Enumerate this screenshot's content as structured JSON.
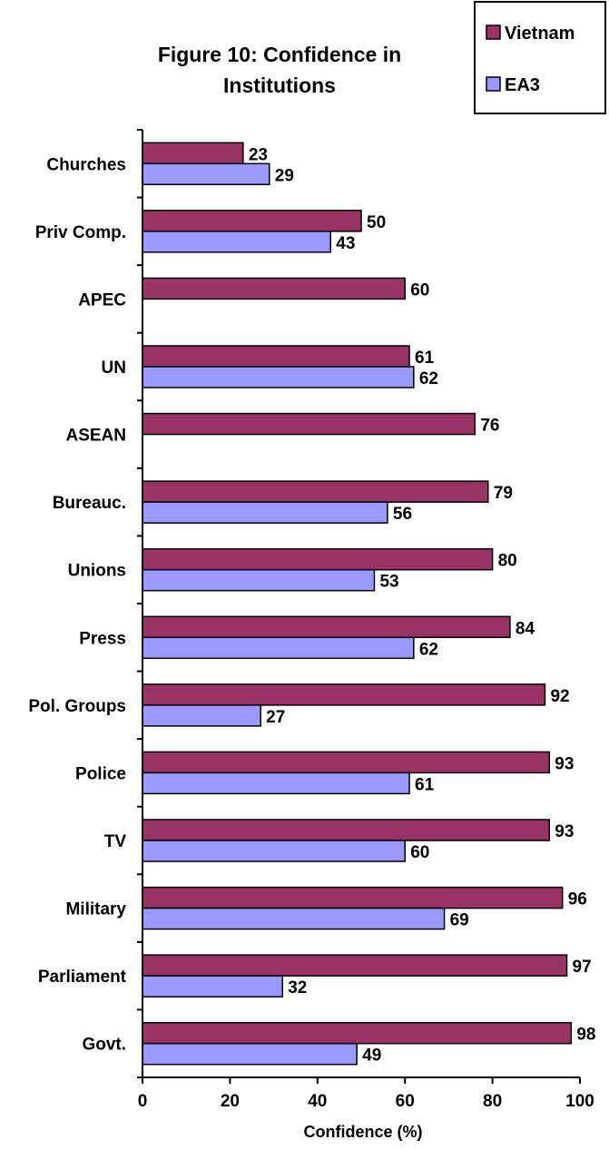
{
  "chart_data": {
    "type": "bar",
    "orientation": "horizontal",
    "title": "Figure 10:  Confidence in Institutions",
    "title_lines": [
      "Figure 10:  Confidence in",
      "Institutions"
    ],
    "xlabel": "Confidence (%)",
    "ylabel": "",
    "xlim": [
      0,
      100
    ],
    "xticks": [
      0,
      20,
      40,
      60,
      80,
      100
    ],
    "grid": false,
    "legend_position": "top-right",
    "categories": [
      "Churches",
      "Priv Comp.",
      "APEC",
      "UN",
      "ASEAN",
      "Bureauc.",
      "Unions",
      "Press",
      "Pol. Groups",
      "Police",
      "TV",
      "Military",
      "Parliament",
      "Govt."
    ],
    "series": [
      {
        "name": "Vietnam",
        "color": "#993366",
        "values": [
          23,
          50,
          60,
          61,
          76,
          79,
          80,
          84,
          92,
          93,
          93,
          96,
          97,
          98
        ]
      },
      {
        "name": "EA3",
        "color": "#9999FF",
        "values": [
          29,
          43,
          null,
          62,
          null,
          56,
          53,
          62,
          27,
          61,
          60,
          69,
          32,
          49
        ]
      }
    ]
  }
}
